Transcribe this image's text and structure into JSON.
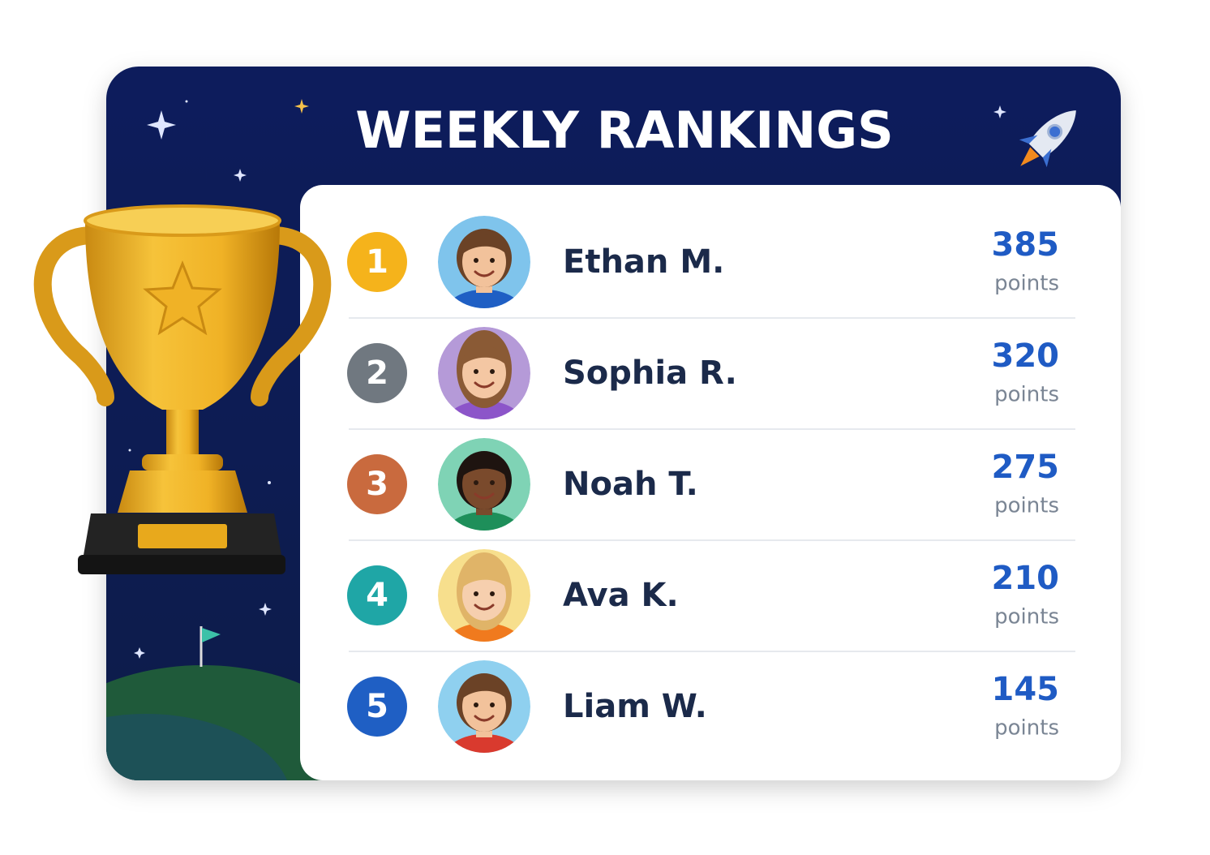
{
  "title": "WEEKLY RANKINGS",
  "rows": [
    {
      "rank": 1,
      "name": "Ethan M.",
      "points": 385,
      "unit": "points",
      "badge_color": "#f5b31b",
      "avatar_color": "#7fc4ec",
      "hair_color": "#6b4226",
      "skin_color": "#f2c29b",
      "shirt_color": "#1f5fc4"
    },
    {
      "rank": 2,
      "name": "Sophia R.",
      "points": 320,
      "unit": "points",
      "badge_color": "#707880",
      "avatar_color": "#b59ad8",
      "hair_color": "#8a5a35",
      "skin_color": "#f4c7a3",
      "shirt_color": "#8c55c9"
    },
    {
      "rank": 3,
      "name": "Noah T.",
      "points": 275,
      "unit": "points",
      "badge_color": "#c96a3e",
      "avatar_color": "#7fd3b5",
      "hair_color": "#1e1410",
      "skin_color": "#7a4a2c",
      "shirt_color": "#1e8f5a"
    },
    {
      "rank": 4,
      "name": "Ava K.",
      "points": 210,
      "unit": "points",
      "badge_color": "#1fa6a6",
      "avatar_color": "#f7df8d",
      "hair_color": "#e0b468",
      "skin_color": "#f6cfae",
      "shirt_color": "#f07a1e"
    },
    {
      "rank": 5,
      "name": "Liam W.",
      "points": 145,
      "unit": "points",
      "badge_color": "#1f5fc4",
      "avatar_color": "#8fd0ef",
      "hair_color": "#6b4226",
      "skin_color": "#f2c29b",
      "shirt_color": "#d93a2e"
    }
  ]
}
